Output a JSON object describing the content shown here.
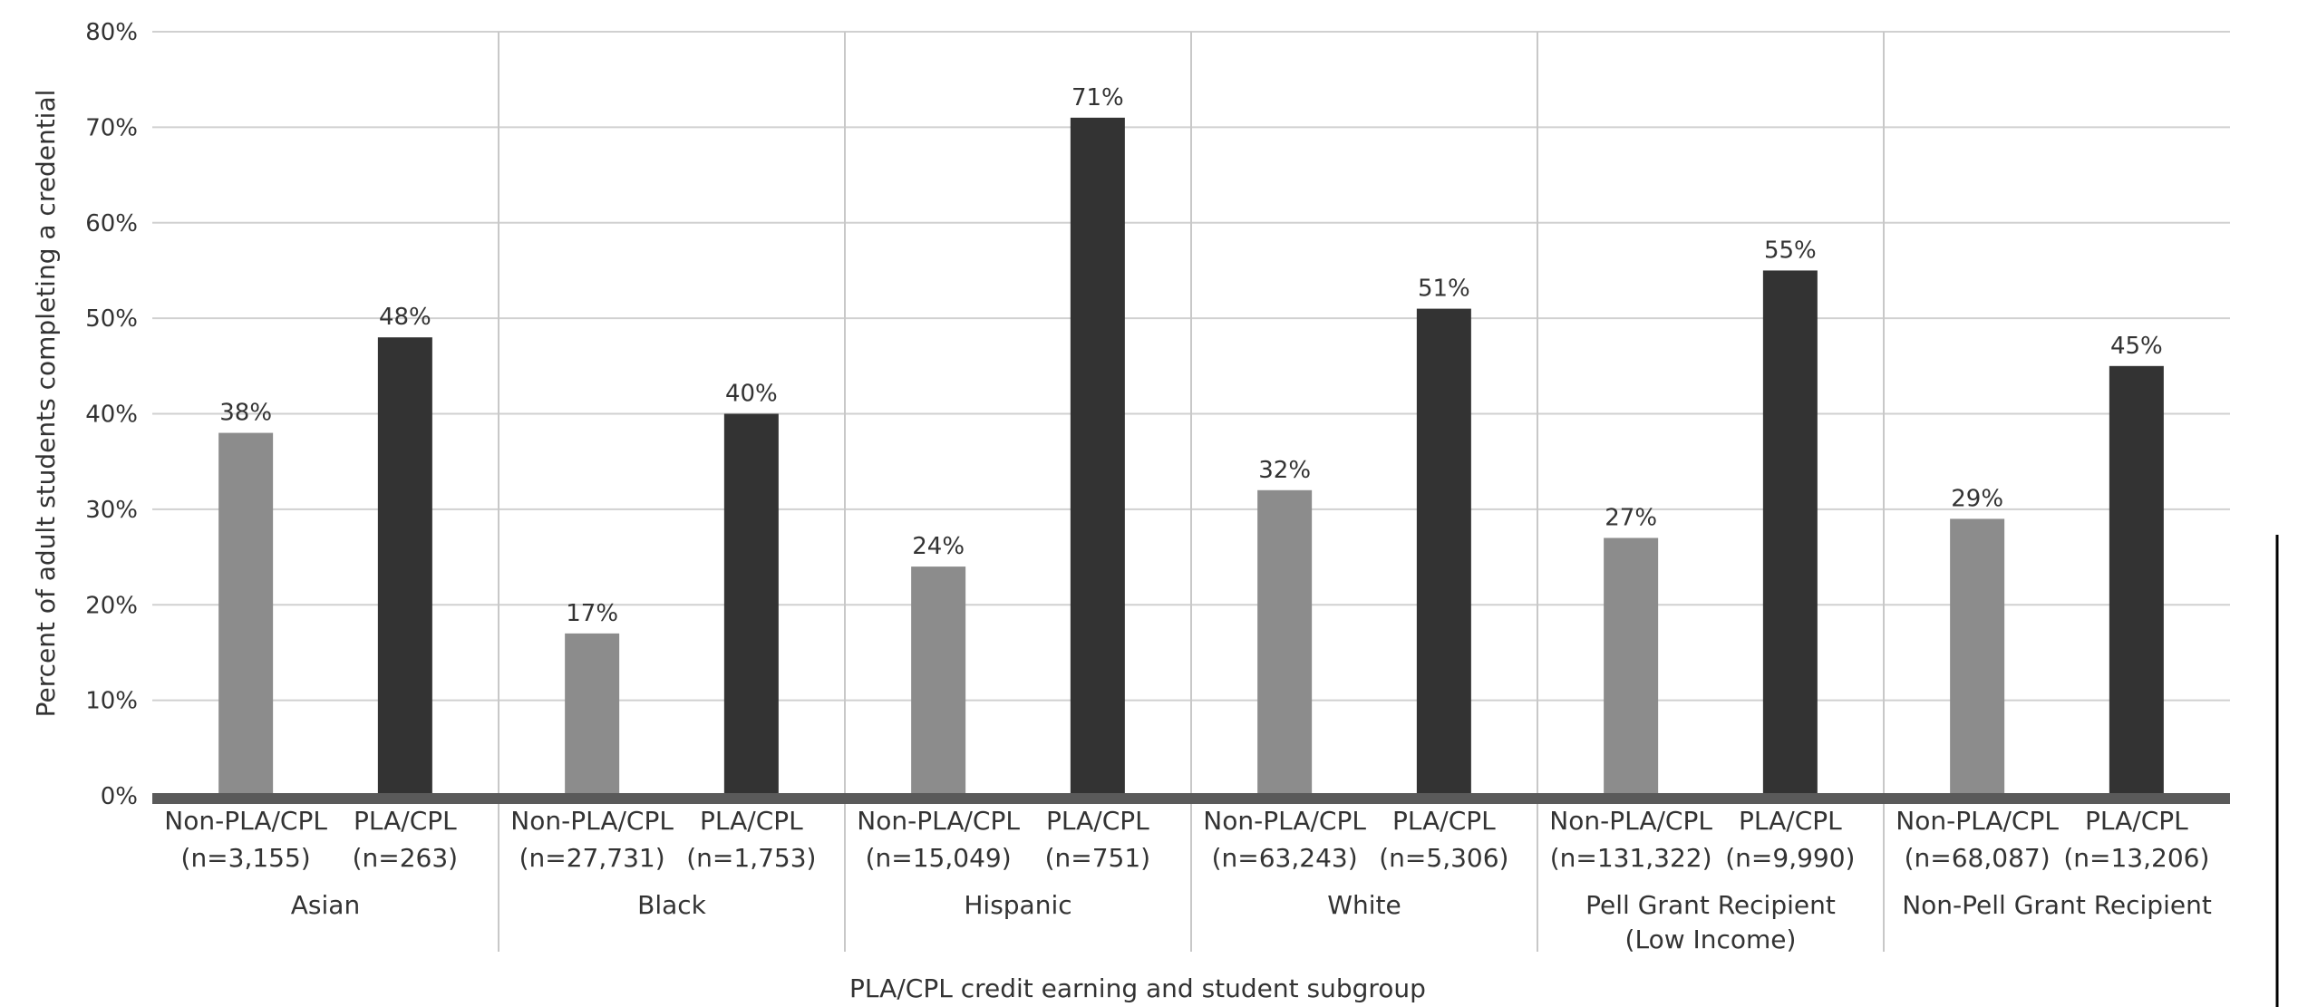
{
  "chart_data": {
    "type": "bar",
    "xlabel": "PLA/CPL credit earning and student subgroup",
    "ylabel": "Percent of adult students completing a credential",
    "ylim": [
      0,
      80
    ],
    "yticks": [
      "0%",
      "10%",
      "20%",
      "30%",
      "40%",
      "50%",
      "60%",
      "70%",
      "80%"
    ],
    "grid": true,
    "colors": {
      "non_pla": "#8c8c8c",
      "pla": "#333333"
    },
    "groups": [
      {
        "name_lines": [
          "Asian"
        ],
        "bars": [
          {
            "label": "Non-PLA/CPL",
            "n": "(n=3,155)",
            "value": 38,
            "value_label": "38%",
            "series": "non_pla"
          },
          {
            "label": "PLA/CPL",
            "n": "(n=263)",
            "value": 48,
            "value_label": "48%",
            "series": "pla"
          }
        ]
      },
      {
        "name_lines": [
          "Black"
        ],
        "bars": [
          {
            "label": "Non-PLA/CPL",
            "n": "(n=27,731)",
            "value": 17,
            "value_label": "17%",
            "series": "non_pla"
          },
          {
            "label": "PLA/CPL",
            "n": "(n=1,753)",
            "value": 40,
            "value_label": "40%",
            "series": "pla"
          }
        ]
      },
      {
        "name_lines": [
          "Hispanic"
        ],
        "bars": [
          {
            "label": "Non-PLA/CPL",
            "n": "(n=15,049)",
            "value": 24,
            "value_label": "24%",
            "series": "non_pla"
          },
          {
            "label": "PLA/CPL",
            "n": "(n=751)",
            "value": 71,
            "value_label": "71%",
            "series": "pla"
          }
        ]
      },
      {
        "name_lines": [
          "White"
        ],
        "bars": [
          {
            "label": "Non-PLA/CPL",
            "n": "(n=63,243)",
            "value": 32,
            "value_label": "32%",
            "series": "non_pla"
          },
          {
            "label": "PLA/CPL",
            "n": "(n=5,306)",
            "value": 51,
            "value_label": "51%",
            "series": "pla"
          }
        ]
      },
      {
        "name_lines": [
          "Pell Grant Recipient",
          "(Low Income)"
        ],
        "bars": [
          {
            "label": "Non-PLA/CPL",
            "n": "(n=131,322)",
            "value": 27,
            "value_label": "27%",
            "series": "non_pla"
          },
          {
            "label": "PLA/CPL",
            "n": "(n=9,990)",
            "value": 55,
            "value_label": "55%",
            "series": "pla"
          }
        ]
      },
      {
        "name_lines": [
          "Non-Pell Grant Recipient"
        ],
        "bars": [
          {
            "label": "Non-PLA/CPL",
            "n": "(n=68,087)",
            "value": 29,
            "value_label": "29%",
            "series": "non_pla"
          },
          {
            "label": "PLA/CPL",
            "n": "(n=13,206)",
            "value": 45,
            "value_label": "45%",
            "series": "pla"
          }
        ]
      }
    ]
  }
}
